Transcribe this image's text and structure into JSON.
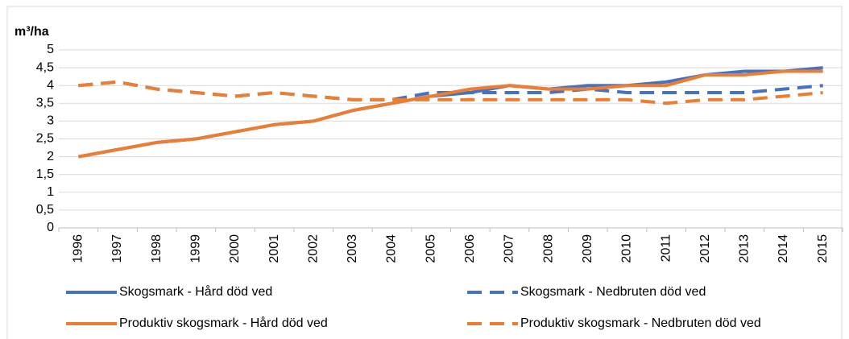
{
  "chart_data": {
    "type": "line",
    "y_label": "m³/ha",
    "categories": [
      "1996",
      "1997",
      "1998",
      "1999",
      "2000",
      "2001",
      "2002",
      "2003",
      "2004",
      "2005",
      "2006",
      "2007",
      "2008",
      "2009",
      "2010",
      "2011",
      "2012",
      "2013",
      "2014",
      "2015"
    ],
    "series": [
      {
        "name": "Skogsmark - Hård död ved",
        "color": "#4472c4",
        "style": "solid",
        "values": [
          2.0,
          2.2,
          2.4,
          2.5,
          2.7,
          2.9,
          3.0,
          3.3,
          3.5,
          3.7,
          3.8,
          4.0,
          3.9,
          4.0,
          4.0,
          4.1,
          4.3,
          4.4,
          4.4,
          4.5
        ]
      },
      {
        "name": "Skogsmark - Nedbruten död ved",
        "color": "#4472c4",
        "style": "dashed",
        "values": [
          4.0,
          4.1,
          3.9,
          3.8,
          3.7,
          3.8,
          3.7,
          3.6,
          3.6,
          3.8,
          3.8,
          3.8,
          3.8,
          3.9,
          3.8,
          3.8,
          3.8,
          3.8,
          3.9,
          4.0
        ]
      },
      {
        "name": "Produktiv skogsmark - Hård död ved",
        "color": "#ed7d31",
        "style": "solid",
        "values": [
          2.0,
          2.2,
          2.4,
          2.5,
          2.7,
          2.9,
          3.0,
          3.3,
          3.5,
          3.7,
          3.9,
          4.0,
          3.9,
          3.9,
          4.0,
          4.0,
          4.3,
          4.3,
          4.4,
          4.4
        ]
      },
      {
        "name": "Produktiv skogsmark - Nedbruten död ved",
        "color": "#ed7d31",
        "style": "dashed",
        "values": [
          4.0,
          4.1,
          3.9,
          3.8,
          3.7,
          3.8,
          3.7,
          3.6,
          3.6,
          3.6,
          3.6,
          3.6,
          3.6,
          3.6,
          3.6,
          3.5,
          3.6,
          3.6,
          3.7,
          3.8
        ]
      }
    ],
    "ylim": [
      0,
      5
    ],
    "yticks": [
      0,
      {
        "value": 0.5,
        "label": "0,5"
      },
      1,
      {
        "value": 1.5,
        "label": "1,5"
      },
      2,
      {
        "value": 2.5,
        "label": "2,5"
      },
      3,
      {
        "value": 3.5,
        "label": "3,5"
      },
      4,
      {
        "value": 4.5,
        "label": "4,5"
      },
      5
    ],
    "grid": true
  }
}
